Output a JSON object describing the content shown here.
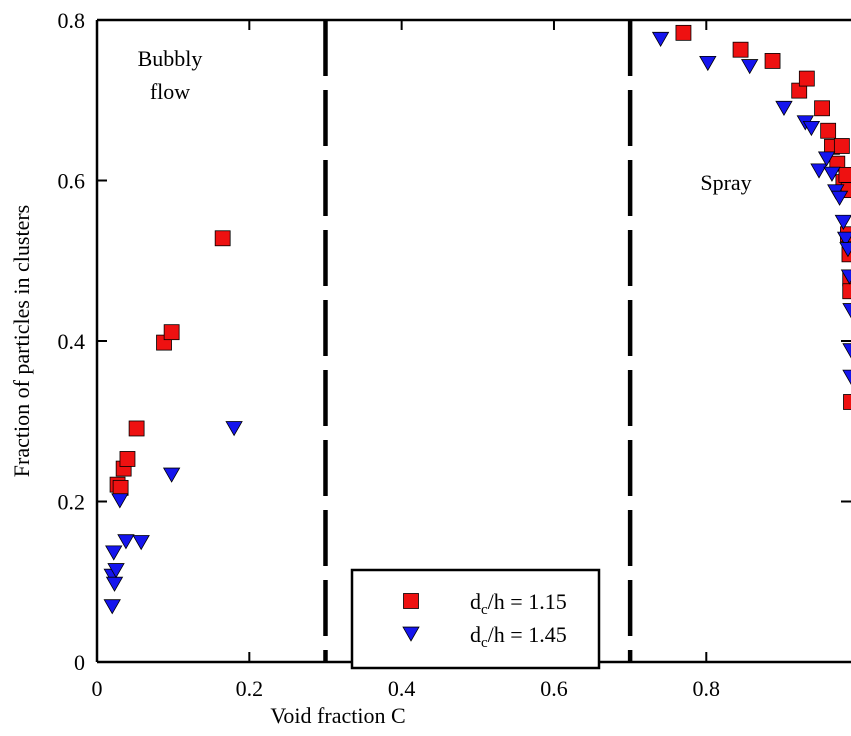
{
  "chart_data": {
    "type": "scatter",
    "xlabel": "Void fraction C",
    "ylabel": "Fraction of particles in clusters",
    "xlim": [
      0,
      0.99
    ],
    "ylim": [
      0,
      0.8
    ],
    "xticks": [
      "0",
      "0.2",
      "0.4",
      "0.6",
      "0.8"
    ],
    "xtick_values": [
      0,
      0.2,
      0.4,
      0.6,
      0.8
    ],
    "yticks": [
      "0",
      "0.2",
      "0.4",
      "0.6",
      "0.8"
    ],
    "ytick_values": [
      0,
      0.2,
      0.4,
      0.6,
      0.8
    ],
    "grid": false,
    "legend_position": "bottom-center",
    "regions": [
      {
        "lines": [
          "Bubbly",
          "flow"
        ]
      },
      {
        "lines": [
          "Spray"
        ]
      }
    ],
    "boundaries": [
      0.3,
      0.7
    ],
    "series": [
      {
        "legend_prefix": "d",
        "legend_sub": "c",
        "legend_suffix": "/h = 1.15",
        "marker": "square",
        "color": "#ee1111",
        "stroke": "#000000",
        "points": [
          [
            0.027,
            0.221
          ],
          [
            0.031,
            0.217
          ],
          [
            0.035,
            0.241
          ],
          [
            0.04,
            0.253
          ],
          [
            0.052,
            0.291
          ],
          [
            0.088,
            0.398
          ],
          [
            0.098,
            0.411
          ],
          [
            0.165,
            0.528
          ],
          [
            0.77,
            0.784
          ],
          [
            0.845,
            0.763
          ],
          [
            0.887,
            0.749
          ],
          [
            0.922,
            0.712
          ],
          [
            0.932,
            0.727
          ],
          [
            0.952,
            0.69
          ],
          [
            0.96,
            0.662
          ],
          [
            0.965,
            0.642
          ],
          [
            0.972,
            0.621
          ],
          [
            0.978,
            0.643
          ],
          [
            0.98,
            0.598
          ],
          [
            0.984,
            0.607
          ],
          [
            0.987,
            0.588
          ],
          [
            0.986,
            0.533
          ],
          [
            0.988,
            0.508
          ],
          [
            0.989,
            0.478
          ],
          [
            0.989,
            0.462
          ],
          [
            0.99,
            0.324
          ]
        ]
      },
      {
        "legend_prefix": "d",
        "legend_sub": "c",
        "legend_suffix": "/h = 1.45",
        "marker": "triangle-down",
        "color": "#1515ee",
        "stroke": "#000000",
        "points": [
          [
            0.02,
            0.107
          ],
          [
            0.022,
            0.136
          ],
          [
            0.023,
            0.097
          ],
          [
            0.025,
            0.114
          ],
          [
            0.02,
            0.069
          ],
          [
            0.03,
            0.201
          ],
          [
            0.038,
            0.15
          ],
          [
            0.058,
            0.149
          ],
          [
            0.098,
            0.233
          ],
          [
            0.18,
            0.291
          ],
          [
            0.74,
            0.776
          ],
          [
            0.802,
            0.746
          ],
          [
            0.857,
            0.742
          ],
          [
            0.902,
            0.69
          ],
          [
            0.93,
            0.672
          ],
          [
            0.938,
            0.665
          ],
          [
            0.948,
            0.612
          ],
          [
            0.958,
            0.627
          ],
          [
            0.965,
            0.608
          ],
          [
            0.97,
            0.586
          ],
          [
            0.975,
            0.578
          ],
          [
            0.98,
            0.548
          ],
          [
            0.983,
            0.527
          ],
          [
            0.986,
            0.514
          ],
          [
            0.988,
            0.48
          ],
          [
            0.99,
            0.438
          ],
          [
            0.99,
            0.388
          ],
          [
            0.99,
            0.355
          ]
        ]
      }
    ]
  }
}
